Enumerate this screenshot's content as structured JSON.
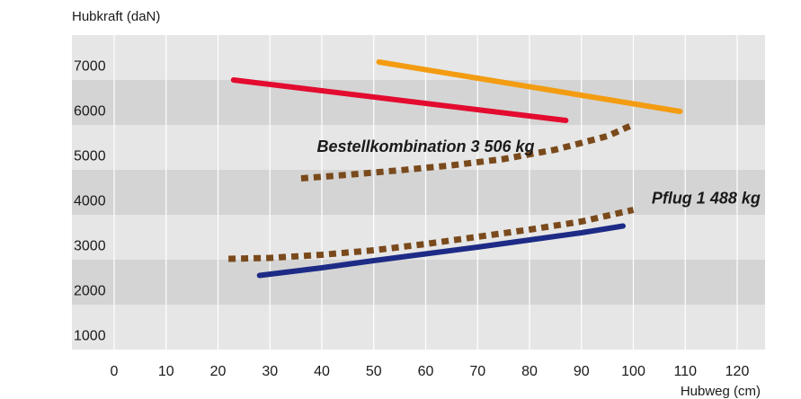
{
  "chart_data": {
    "type": "line",
    "ylabel": "Hubkraft (daN)",
    "xlabel": "Hubweg (cm)",
    "xlim": [
      0,
      125
    ],
    "ylim": [
      750,
      7750
    ],
    "x_ticks": [
      0,
      10,
      20,
      30,
      40,
      50,
      60,
      70,
      80,
      90,
      100,
      110,
      120
    ],
    "y_ticks": [
      1000,
      2000,
      3000,
      4000,
      5000,
      6000,
      7000
    ],
    "grid": "vertical lines, alternating horizontal bands",
    "series": [
      {
        "color": "#e30b2f",
        "style": "solid",
        "x": [
          23,
          87
        ],
        "y": [
          6750,
          5850
        ]
      },
      {
        "color": "#f39c12",
        "style": "solid",
        "x": [
          51,
          109
        ],
        "y": [
          7150,
          6050
        ]
      },
      {
        "color": "#1d2b86",
        "style": "solid",
        "x": [
          28,
          40,
          50,
          60,
          70,
          80,
          90,
          98
        ],
        "y": [
          2400,
          2570,
          2730,
          2880,
          3030,
          3190,
          3350,
          3500
        ]
      },
      {
        "color": "#7a4a1c",
        "style": "dotted",
        "x": [
          22,
          30,
          40,
          50,
          60,
          70,
          80,
          90,
          100
        ],
        "y": [
          2770,
          2790,
          2860,
          2960,
          3100,
          3260,
          3420,
          3600,
          3860
        ]
      },
      {
        "color": "#7a4a1c",
        "style": "dotted",
        "x": [
          36,
          45,
          55,
          65,
          75,
          85,
          95,
          100
        ],
        "y": [
          4560,
          4640,
          4740,
          4850,
          4990,
          5200,
          5500,
          5760
        ]
      }
    ],
    "annotations": [
      {
        "text": "Bestellkombination 3 506 kg",
        "x": 60,
        "y": 5150
      },
      {
        "text": "Pflug 1 488 kg",
        "x": 114,
        "y": 4000
      }
    ]
  }
}
